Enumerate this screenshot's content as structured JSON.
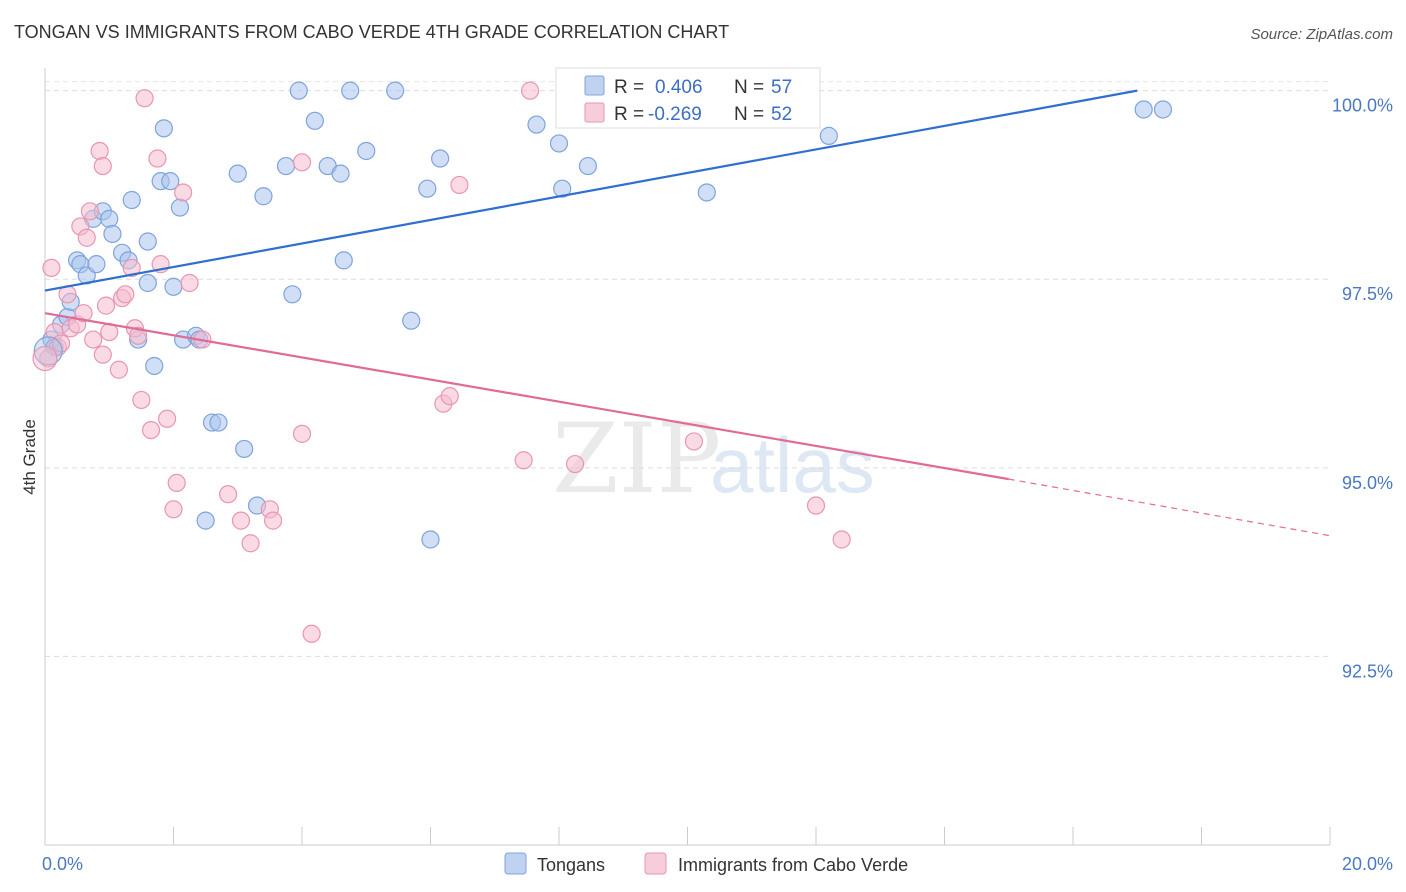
{
  "chart_data": {
    "type": "scatter",
    "title": "TONGAN VS IMMIGRANTS FROM CABO VERDE 4TH GRADE CORRELATION CHART",
    "source": "Source: ZipAtlas.com",
    "ylabel": "4th Grade",
    "xlim": [
      0.0,
      20.0
    ],
    "ylim": [
      90.0,
      100.3
    ],
    "x_tick_labels": [
      {
        "value": 0.0,
        "label": "0.0%"
      },
      {
        "value": 20.0,
        "label": "20.0%"
      }
    ],
    "y_ticks": [
      {
        "value": 100.0,
        "label": "100.0%"
      },
      {
        "value": 97.5,
        "label": "97.5%"
      },
      {
        "value": 95.0,
        "label": "95.0%"
      },
      {
        "value": 92.5,
        "label": "92.5%"
      }
    ],
    "x_minor_ticks": [
      0,
      2,
      4,
      6,
      8,
      10,
      12,
      14,
      16,
      18,
      20
    ],
    "watermark": {
      "part1": "ZIP",
      "part2": "atlas"
    },
    "legend": {
      "r_label": "R =",
      "n_label": "N =",
      "entries": [
        {
          "name": "Tongans",
          "r": "0.406",
          "n": "57",
          "color": "#a9c4ec",
          "stroke": "#7fa3dc"
        },
        {
          "name": "Immigrants from Cabo Verde",
          "r": "-0.269",
          "n": "52",
          "color": "#f6bccd",
          "stroke": "#e996b0"
        }
      ]
    },
    "series": [
      {
        "name": "Tongans",
        "color": "#a9c4ec",
        "stroke": "#7fa3dc",
        "line_color": "#2f6fcf",
        "trend": {
          "x0": 0.0,
          "y0": 97.35,
          "x1": 17.0,
          "y1": 100.0,
          "dashed_to": null
        },
        "points": [
          [
            0.1,
            96.7
          ],
          [
            0.15,
            96.6
          ],
          [
            0.25,
            96.9
          ],
          [
            0.35,
            97.0
          ],
          [
            0.4,
            97.2
          ],
          [
            0.5,
            97.75
          ],
          [
            0.55,
            97.7
          ],
          [
            0.65,
            97.55
          ],
          [
            0.75,
            98.3
          ],
          [
            0.8,
            97.7
          ],
          [
            0.9,
            98.4
          ],
          [
            1.0,
            98.3
          ],
          [
            1.05,
            98.1
          ],
          [
            1.2,
            97.85
          ],
          [
            1.3,
            97.75
          ],
          [
            1.35,
            98.55
          ],
          [
            1.45,
            96.7
          ],
          [
            1.6,
            97.45
          ],
          [
            1.6,
            98.0
          ],
          [
            1.7,
            96.35
          ],
          [
            1.8,
            98.8
          ],
          [
            1.85,
            99.5
          ],
          [
            1.95,
            98.8
          ],
          [
            2.0,
            97.4
          ],
          [
            2.1,
            98.45
          ],
          [
            2.15,
            96.7
          ],
          [
            2.35,
            96.75
          ],
          [
            2.4,
            96.7
          ],
          [
            2.5,
            94.3
          ],
          [
            2.6,
            95.6
          ],
          [
            2.7,
            95.6
          ],
          [
            3.0,
            98.9
          ],
          [
            3.1,
            95.25
          ],
          [
            3.3,
            94.5
          ],
          [
            3.4,
            98.6
          ],
          [
            3.75,
            99.0
          ],
          [
            3.85,
            97.3
          ],
          [
            3.95,
            100.0
          ],
          [
            4.2,
            99.6
          ],
          [
            4.4,
            99.0
          ],
          [
            4.6,
            98.9
          ],
          [
            4.65,
            97.75
          ],
          [
            4.75,
            100.0
          ],
          [
            5.0,
            99.2
          ],
          [
            5.45,
            100.0
          ],
          [
            5.7,
            96.95
          ],
          [
            5.95,
            98.7
          ],
          [
            6.0,
            94.05
          ],
          [
            6.15,
            99.1
          ],
          [
            7.65,
            99.55
          ],
          [
            8.0,
            99.3
          ],
          [
            8.05,
            98.7
          ],
          [
            8.45,
            99.0
          ],
          [
            10.3,
            98.65
          ],
          [
            12.2,
            99.4
          ],
          [
            17.1,
            99.75
          ],
          [
            17.4,
            99.75
          ]
        ]
      },
      {
        "name": "Immigrants from Cabo Verde",
        "color": "#f6bccd",
        "stroke": "#e996b0",
        "line_color": "#e06b96",
        "trend": {
          "x0": 0.0,
          "y0": 97.05,
          "x1": 15.0,
          "y1": 94.85,
          "dashed_to": {
            "x": 20.0,
            "y": 94.1
          }
        },
        "points": [
          [
            0.05,
            96.45
          ],
          [
            0.1,
            97.65
          ],
          [
            0.15,
            96.8
          ],
          [
            0.2,
            96.6
          ],
          [
            0.25,
            96.65
          ],
          [
            0.35,
            97.3
          ],
          [
            0.4,
            96.85
          ],
          [
            0.5,
            96.9
          ],
          [
            0.55,
            98.2
          ],
          [
            0.6,
            97.05
          ],
          [
            0.65,
            98.05
          ],
          [
            0.7,
            98.4
          ],
          [
            0.75,
            96.7
          ],
          [
            0.85,
            99.2
          ],
          [
            0.9,
            96.5
          ],
          [
            0.9,
            99.0
          ],
          [
            0.95,
            97.15
          ],
          [
            1.0,
            96.8
          ],
          [
            1.15,
            96.3
          ],
          [
            1.2,
            97.25
          ],
          [
            1.25,
            97.3
          ],
          [
            1.35,
            97.65
          ],
          [
            1.4,
            96.85
          ],
          [
            1.45,
            96.75
          ],
          [
            1.5,
            95.9
          ],
          [
            1.55,
            99.9
          ],
          [
            1.65,
            95.5
          ],
          [
            1.75,
            99.1
          ],
          [
            1.8,
            97.7
          ],
          [
            1.9,
            95.65
          ],
          [
            2.0,
            94.45
          ],
          [
            2.05,
            94.8
          ],
          [
            2.15,
            98.65
          ],
          [
            2.25,
            97.45
          ],
          [
            2.45,
            96.7
          ],
          [
            2.85,
            94.65
          ],
          [
            3.05,
            94.3
          ],
          [
            3.2,
            94.0
          ],
          [
            3.5,
            94.45
          ],
          [
            3.55,
            94.3
          ],
          [
            4.0,
            95.45
          ],
          [
            4.0,
            99.05
          ],
          [
            4.15,
            92.8
          ],
          [
            6.2,
            95.85
          ],
          [
            6.3,
            95.95
          ],
          [
            6.45,
            98.75
          ],
          [
            7.45,
            95.1
          ],
          [
            7.55,
            100.0
          ],
          [
            8.25,
            95.05
          ],
          [
            10.1,
            95.35
          ],
          [
            12.0,
            94.5
          ],
          [
            12.4,
            94.05
          ]
        ]
      }
    ]
  }
}
